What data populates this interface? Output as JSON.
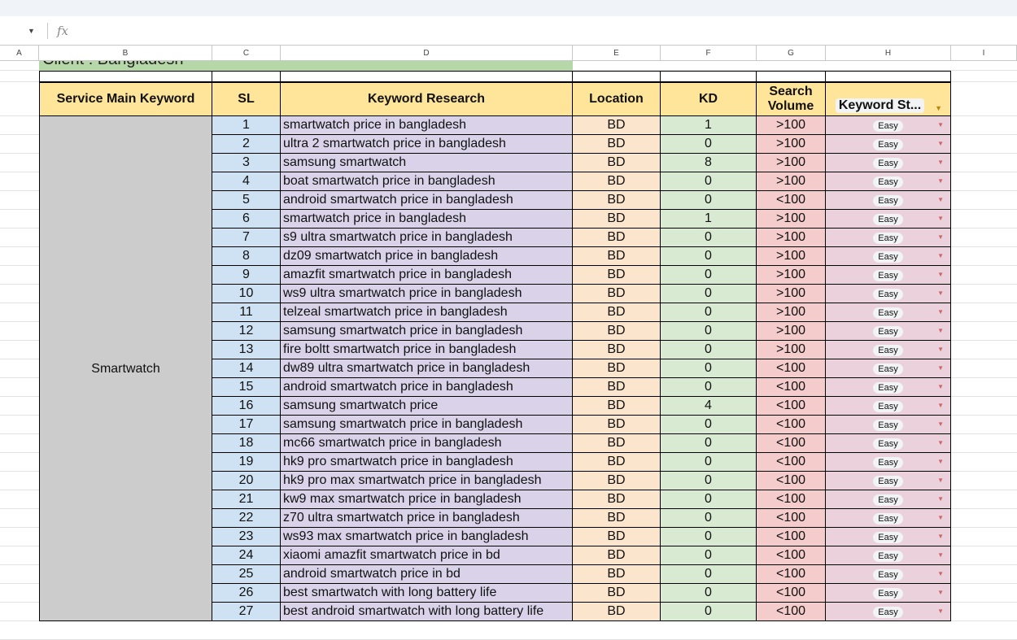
{
  "formula_bar": {
    "fx_label": "fx"
  },
  "columns": [
    "A",
    "B",
    "C",
    "D",
    "E",
    "F",
    "G",
    "H",
    "I"
  ],
  "client_label": "Client : Bangladesh",
  "headers": {
    "service": "Service Main Keyword",
    "sl": "SL",
    "keyword": "Keyword Research",
    "location": "Location",
    "kd": "KD",
    "volume": "Search Volume",
    "status": "Keyword St..."
  },
  "service_main_keyword": "Smartwatch",
  "colors": {
    "header": "#ffe599",
    "service": "#cccccc",
    "sl": "#cfe2f3",
    "keyword": "#d9d2e9",
    "location": "#fce5cd",
    "kd": "#d9ead3",
    "volume": "#f4cccc",
    "status": "#ead1dc",
    "client": "#b6d7a8"
  },
  "rows": [
    {
      "sl": "1",
      "keyword": "smartwatch price in bangladesh",
      "location": "BD",
      "kd": "1",
      "volume": ">100",
      "status": "Easy"
    },
    {
      "sl": "2",
      "keyword": "ultra 2 smartwatch price in bangladesh",
      "location": "BD",
      "kd": "0",
      "volume": ">100",
      "status": "Easy"
    },
    {
      "sl": "3",
      "keyword": "samsung smartwatch",
      "location": "BD",
      "kd": "8",
      "volume": ">100",
      "status": "Easy"
    },
    {
      "sl": "4",
      "keyword": "boat smartwatch price in bangladesh",
      "location": "BD",
      "kd": "0",
      "volume": ">100",
      "status": "Easy"
    },
    {
      "sl": "5",
      "keyword": "android smartwatch price in bangladesh",
      "location": "BD",
      "kd": "0",
      "volume": "<100",
      "status": "Easy"
    },
    {
      "sl": "6",
      "keyword": "smartwatch price in bangladesh",
      "location": "BD",
      "kd": "1",
      "volume": ">100",
      "status": "Easy"
    },
    {
      "sl": "7",
      "keyword": "s9 ultra smartwatch price in bangladesh",
      "location": "BD",
      "kd": "0",
      "volume": ">100",
      "status": "Easy"
    },
    {
      "sl": "8",
      "keyword": "dz09 smartwatch price in bangladesh",
      "location": "BD",
      "kd": "0",
      "volume": ">100",
      "status": "Easy"
    },
    {
      "sl": "9",
      "keyword": "amazfit smartwatch price in bangladesh",
      "location": "BD",
      "kd": "0",
      "volume": ">100",
      "status": "Easy"
    },
    {
      "sl": "10",
      "keyword": "ws9 ultra smartwatch price in bangladesh",
      "location": "BD",
      "kd": "0",
      "volume": ">100",
      "status": "Easy"
    },
    {
      "sl": "11",
      "keyword": "telzeal smartwatch price in bangladesh",
      "location": "BD",
      "kd": "0",
      "volume": ">100",
      "status": "Easy"
    },
    {
      "sl": "12",
      "keyword": "samsung smartwatch price in bangladesh",
      "location": "BD",
      "kd": "0",
      "volume": ">100",
      "status": "Easy"
    },
    {
      "sl": "13",
      "keyword": "fire boltt smartwatch price in bangladesh",
      "location": "BD",
      "kd": "0",
      "volume": ">100",
      "status": "Easy"
    },
    {
      "sl": "14",
      "keyword": "dw89 ultra smartwatch price in bangladesh",
      "location": "BD",
      "kd": "0",
      "volume": "<100",
      "status": "Easy"
    },
    {
      "sl": "15",
      "keyword": "android smartwatch price in bangladesh",
      "location": "BD",
      "kd": "0",
      "volume": "<100",
      "status": "Easy"
    },
    {
      "sl": "16",
      "keyword": "samsung smartwatch price",
      "location": "BD",
      "kd": "4",
      "volume": "<100",
      "status": "Easy"
    },
    {
      "sl": "17",
      "keyword": "samsung smartwatch price in bangladesh",
      "location": "BD",
      "kd": "0",
      "volume": "<100",
      "status": "Easy"
    },
    {
      "sl": "18",
      "keyword": "mc66 smartwatch price in bangladesh",
      "location": "BD",
      "kd": "0",
      "volume": "<100",
      "status": "Easy"
    },
    {
      "sl": "19",
      "keyword": "hk9 pro smartwatch price in bangladesh",
      "location": "BD",
      "kd": "0",
      "volume": "<100",
      "status": "Easy"
    },
    {
      "sl": "20",
      "keyword": "hk9 pro max smartwatch price in bangladesh",
      "location": "BD",
      "kd": "0",
      "volume": "<100",
      "status": "Easy"
    },
    {
      "sl": "21",
      "keyword": "kw9 max smartwatch price in bangladesh",
      "location": "BD",
      "kd": "0",
      "volume": "<100",
      "status": "Easy"
    },
    {
      "sl": "22",
      "keyword": "z70 ultra smartwatch price in bangladesh",
      "location": "BD",
      "kd": "0",
      "volume": "<100",
      "status": "Easy"
    },
    {
      "sl": "23",
      "keyword": "ws93 max smartwatch price in bangladesh",
      "location": "BD",
      "kd": "0",
      "volume": "<100",
      "status": "Easy"
    },
    {
      "sl": "24",
      "keyword": "xiaomi amazfit smartwatch price in bd",
      "location": "BD",
      "kd": "0",
      "volume": "<100",
      "status": "Easy"
    },
    {
      "sl": "25",
      "keyword": "android smartwatch price in bd",
      "location": "BD",
      "kd": "0",
      "volume": "<100",
      "status": "Easy"
    },
    {
      "sl": "26",
      "keyword": "best smartwatch with long battery life",
      "location": "BD",
      "kd": "0",
      "volume": "<100",
      "status": "Easy"
    },
    {
      "sl": "27",
      "keyword": "best android smartwatch with long battery life",
      "location": "BD",
      "kd": "0",
      "volume": "<100",
      "status": "Easy"
    }
  ]
}
